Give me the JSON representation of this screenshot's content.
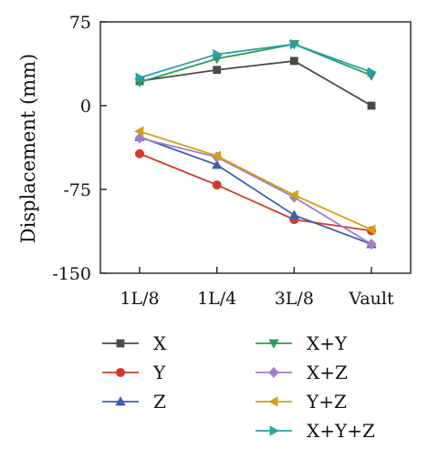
{
  "chart_data": {
    "type": "line",
    "title": "",
    "xlabel": "",
    "ylabel": "Displacement (mm)",
    "categories": [
      "1L/8",
      "1L/4",
      "3L/8",
      "Vault"
    ],
    "ylim": [
      -150,
      75
    ],
    "yticks": [
      75,
      0,
      -75,
      -150
    ],
    "grid": false,
    "legend": "bottom",
    "series": [
      {
        "name": "X",
        "color": "#4a4a4a",
        "marker": "square",
        "values": [
          22,
          32,
          40,
          0
        ]
      },
      {
        "name": "Y",
        "color": "#d03b2c",
        "marker": "circle",
        "values": [
          -43,
          -71,
          -102,
          -112
        ]
      },
      {
        "name": "Z",
        "color": "#3b5fb0",
        "marker": "triangle-up",
        "values": [
          -28,
          -53,
          -98,
          -124
        ]
      },
      {
        "name": "X+Y",
        "color": "#2e9a5a",
        "marker": "triangle-down",
        "values": [
          21,
          42,
          55,
          27
        ]
      },
      {
        "name": "X+Z",
        "color": "#a57cc8",
        "marker": "diamond",
        "values": [
          -29,
          -46,
          -82,
          -124
        ]
      },
      {
        "name": "Y+Z",
        "color": "#d4a017",
        "marker": "triangle-left",
        "values": [
          -23,
          -45,
          -80,
          -111
        ]
      },
      {
        "name": "X+Y+Z",
        "color": "#2aa0a8",
        "marker": "triangle-right",
        "values": [
          25,
          46,
          55,
          30
        ]
      }
    ]
  }
}
